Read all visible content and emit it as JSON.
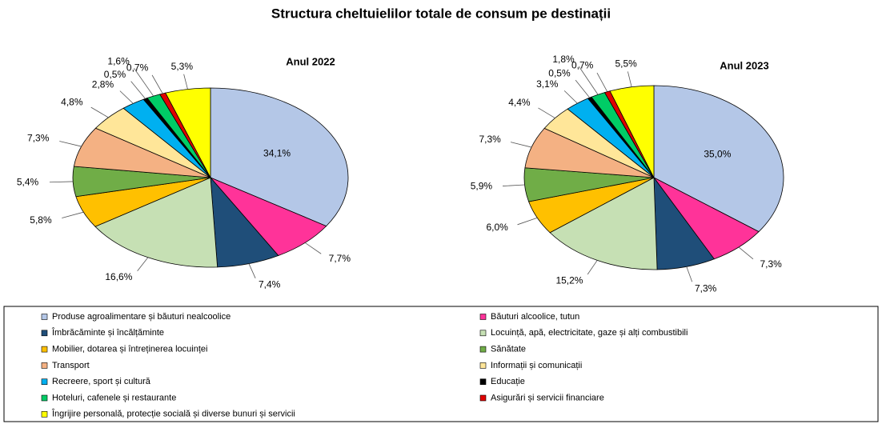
{
  "title": "Structura cheltuielilor totale de consum pe destinații",
  "chart_data": [
    {
      "type": "pie",
      "title": "Anul 2022",
      "categories": [
        "Produse agroalimentare și băuturi nealcoolice",
        "Băuturi alcoolice, tutun",
        "Îmbrăcăminte și încălțăminte",
        "Locuință, apă, electricitate, gaze și alți combustibili",
        "Mobilier, dotarea și întreținerea locuinței",
        "Sănătate",
        "Transport",
        "Informații și comunicații",
        "Recreere, sport și cultură",
        "Educație",
        "Hoteluri, cafenele și restaurante",
        "Asigurări și servicii financiare",
        "Îngrijire personală, protecție socială și diverse bunuri și servicii"
      ],
      "values": [
        34.1,
        7.7,
        7.4,
        16.6,
        5.8,
        5.4,
        7.3,
        4.8,
        2.8,
        0.5,
        1.6,
        0.7,
        5.3
      ],
      "value_labels": [
        "34,1%",
        "7,7%",
        "7,4%",
        "16,6%",
        "5,8%",
        "5,4%",
        "7,3%",
        "4,8%",
        "2,8%",
        "0,5%",
        "1,6%",
        "0,7%",
        "5,3%"
      ],
      "colors": [
        "#b4c7e7",
        "#ff3399",
        "#1f4e79",
        "#c6e0b4",
        "#ffc000",
        "#70ad47",
        "#f4b183",
        "#ffe699",
        "#00b0f0",
        "#000000",
        "#00cc66",
        "#e00000",
        "#ffff00"
      ]
    },
    {
      "type": "pie",
      "title": "Anul 2023",
      "categories": [
        "Produse agroalimentare și băuturi nealcoolice",
        "Băuturi alcoolice, tutun",
        "Îmbrăcăminte și încălțăminte",
        "Locuință, apă, electricitate, gaze și alți combustibili",
        "Mobilier, dotarea și întreținerea locuinței",
        "Sănătate",
        "Transport",
        "Informații și comunicații",
        "Recreere, sport și cultură",
        "Educație",
        "Hoteluri, cafenele și restaurante",
        "Asigurări și servicii financiare",
        "Îngrijire personală, protecție socială și diverse bunuri și servicii"
      ],
      "values": [
        35.0,
        7.3,
        7.3,
        15.2,
        6.0,
        5.9,
        7.3,
        4.4,
        3.1,
        0.5,
        1.8,
        0.7,
        5.5
      ],
      "value_labels": [
        "35,0%",
        "7,3%",
        "7,3%",
        "15,2%",
        "6,0%",
        "5,9%",
        "7,3%",
        "4,4%",
        "3,1%",
        "0,5%",
        "1,8%",
        "0,7%",
        "5,5%"
      ],
      "colors": [
        "#b4c7e7",
        "#ff3399",
        "#1f4e79",
        "#c6e0b4",
        "#ffc000",
        "#70ad47",
        "#f4b183",
        "#ffe699",
        "#00b0f0",
        "#000000",
        "#00cc66",
        "#e00000",
        "#ffff00"
      ]
    }
  ]
}
